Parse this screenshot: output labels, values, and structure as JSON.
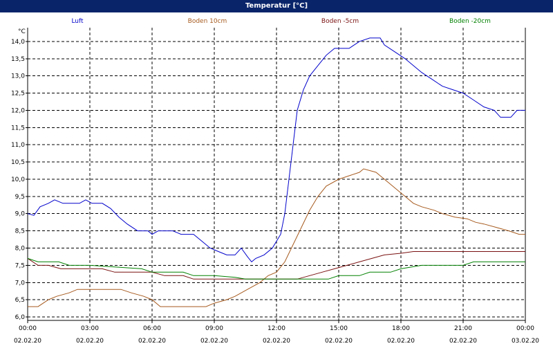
{
  "window": {
    "title": "Temperatur [°C]"
  },
  "chart_data": {
    "type": "line",
    "title": "Temperatur [°C]",
    "ylabel": "°C",
    "xlabel": "",
    "ylim": [
      5.9,
      14.4
    ],
    "yticks": [
      6.0,
      6.5,
      7.0,
      7.5,
      8.0,
      8.5,
      9.0,
      9.5,
      10.0,
      10.5,
      11.0,
      11.5,
      12.0,
      12.5,
      13.0,
      13.5,
      14.0
    ],
    "ytick_labels": [
      "6,0",
      "6,5",
      "7,0",
      "7,5",
      "8,0",
      "8,5",
      "9,0",
      "9,5",
      "10,0",
      "10,5",
      "11,0",
      "11,5",
      "12,0",
      "12,5",
      "13,0",
      "13,5",
      "14,0"
    ],
    "xlim": [
      0,
      24
    ],
    "xticks": [
      0,
      3,
      6,
      9,
      12,
      15,
      18,
      21,
      24
    ],
    "xtick_time_labels": [
      "00:00",
      "03:00",
      "06:00",
      "09:00",
      "12:00",
      "15:00",
      "18:00",
      "21:00",
      "00:00"
    ],
    "xtick_date_labels": [
      "02.02.20",
      "02.02.20",
      "02.02.20",
      "02.02.20",
      "02.02.20",
      "02.02.20",
      "02.02.20",
      "02.02.20",
      "03.02.20"
    ],
    "grid": true,
    "legend": "top",
    "series": [
      {
        "name": "Luft",
        "color": "#0000cc",
        "points": [
          [
            0,
            9.0
          ],
          [
            0.3,
            8.95
          ],
          [
            0.6,
            9.2
          ],
          [
            1.0,
            9.3
          ],
          [
            1.3,
            9.4
          ],
          [
            1.7,
            9.3
          ],
          [
            2.5,
            9.3
          ],
          [
            2.8,
            9.4
          ],
          [
            3.1,
            9.3
          ],
          [
            3.6,
            9.3
          ],
          [
            4.0,
            9.15
          ],
          [
            4.4,
            8.9
          ],
          [
            4.8,
            8.7
          ],
          [
            5.3,
            8.5
          ],
          [
            5.8,
            8.5
          ],
          [
            6.0,
            8.4
          ],
          [
            6.3,
            8.5
          ],
          [
            7.0,
            8.5
          ],
          [
            7.4,
            8.4
          ],
          [
            8.0,
            8.4
          ],
          [
            8.4,
            8.2
          ],
          [
            8.8,
            8.0
          ],
          [
            9.2,
            7.9
          ],
          [
            9.6,
            7.8
          ],
          [
            10.0,
            7.8
          ],
          [
            10.3,
            8.0
          ],
          [
            10.6,
            7.75
          ],
          [
            10.8,
            7.6
          ],
          [
            11.0,
            7.7
          ],
          [
            11.4,
            7.8
          ],
          [
            11.8,
            8.0
          ],
          [
            12.2,
            8.4
          ],
          [
            12.4,
            9.0
          ],
          [
            12.6,
            10.0
          ],
          [
            12.8,
            11.0
          ],
          [
            13.0,
            12.0
          ],
          [
            13.3,
            12.6
          ],
          [
            13.6,
            13.0
          ],
          [
            14.0,
            13.3
          ],
          [
            14.4,
            13.6
          ],
          [
            14.8,
            13.8
          ],
          [
            15.5,
            13.8
          ],
          [
            16.0,
            14.0
          ],
          [
            16.5,
            14.1
          ],
          [
            17.0,
            14.1
          ],
          [
            17.2,
            13.9
          ],
          [
            17.7,
            13.7
          ],
          [
            18.2,
            13.5
          ],
          [
            18.6,
            13.3
          ],
          [
            19.0,
            13.1
          ],
          [
            19.5,
            12.9
          ],
          [
            20.0,
            12.7
          ],
          [
            20.5,
            12.6
          ],
          [
            21.0,
            12.5
          ],
          [
            21.5,
            12.3
          ],
          [
            22.0,
            12.1
          ],
          [
            22.5,
            12.0
          ],
          [
            22.8,
            11.8
          ],
          [
            23.3,
            11.8
          ],
          [
            23.6,
            12.0
          ],
          [
            24.0,
            12.0
          ]
        ]
      },
      {
        "name": "Boden 10cm",
        "color": "#a65a1e",
        "points": [
          [
            0,
            6.3
          ],
          [
            0.5,
            6.3
          ],
          [
            1.0,
            6.5
          ],
          [
            1.4,
            6.6
          ],
          [
            2.0,
            6.7
          ],
          [
            2.4,
            6.8
          ],
          [
            3.0,
            6.8
          ],
          [
            4.5,
            6.8
          ],
          [
            5.0,
            6.7
          ],
          [
            5.6,
            6.6
          ],
          [
            6.0,
            6.5
          ],
          [
            6.4,
            6.3
          ],
          [
            7.0,
            6.3
          ],
          [
            8.0,
            6.3
          ],
          [
            8.6,
            6.3
          ],
          [
            9.0,
            6.4
          ],
          [
            9.6,
            6.5
          ],
          [
            10.0,
            6.6
          ],
          [
            10.6,
            6.8
          ],
          [
            11.2,
            7.0
          ],
          [
            11.6,
            7.2
          ],
          [
            12.0,
            7.3
          ],
          [
            12.4,
            7.6
          ],
          [
            12.8,
            8.1
          ],
          [
            13.2,
            8.6
          ],
          [
            13.6,
            9.1
          ],
          [
            14.0,
            9.5
          ],
          [
            14.4,
            9.8
          ],
          [
            15.0,
            10.0
          ],
          [
            15.5,
            10.1
          ],
          [
            16.0,
            10.2
          ],
          [
            16.2,
            10.3
          ],
          [
            16.8,
            10.2
          ],
          [
            17.4,
            9.9
          ],
          [
            17.8,
            9.7
          ],
          [
            18.2,
            9.5
          ],
          [
            18.6,
            9.3
          ],
          [
            19.0,
            9.2
          ],
          [
            19.6,
            9.1
          ],
          [
            20.0,
            9.0
          ],
          [
            20.6,
            8.9
          ],
          [
            21.2,
            8.85
          ],
          [
            21.6,
            8.75
          ],
          [
            22.0,
            8.7
          ],
          [
            22.6,
            8.6
          ],
          [
            23.2,
            8.5
          ],
          [
            23.7,
            8.4
          ],
          [
            24.0,
            8.4
          ]
        ]
      },
      {
        "name": "Boden -5cm",
        "color": "#7a1010",
        "points": [
          [
            0,
            7.7
          ],
          [
            0.5,
            7.5
          ],
          [
            1.0,
            7.5
          ],
          [
            1.6,
            7.4
          ],
          [
            2.2,
            7.4
          ],
          [
            3.0,
            7.4
          ],
          [
            3.6,
            7.4
          ],
          [
            4.2,
            7.3
          ],
          [
            5.0,
            7.3
          ],
          [
            6.0,
            7.3
          ],
          [
            6.6,
            7.2
          ],
          [
            7.5,
            7.2
          ],
          [
            8.0,
            7.1
          ],
          [
            8.8,
            7.1
          ],
          [
            9.6,
            7.1
          ],
          [
            10.2,
            7.1
          ],
          [
            11.0,
            7.1
          ],
          [
            12.0,
            7.1
          ],
          [
            13.0,
            7.1
          ],
          [
            13.6,
            7.2
          ],
          [
            14.2,
            7.3
          ],
          [
            14.8,
            7.4
          ],
          [
            15.4,
            7.5
          ],
          [
            16.0,
            7.6
          ],
          [
            16.6,
            7.7
          ],
          [
            17.2,
            7.8
          ],
          [
            18.0,
            7.85
          ],
          [
            18.6,
            7.9
          ],
          [
            20.0,
            7.9
          ],
          [
            24.0,
            7.9
          ]
        ]
      },
      {
        "name": "Boden -20cm",
        "color": "#008000",
        "points": [
          [
            0,
            7.7
          ],
          [
            0.5,
            7.6
          ],
          [
            1.5,
            7.6
          ],
          [
            2.0,
            7.5
          ],
          [
            3.0,
            7.5
          ],
          [
            5.5,
            7.4
          ],
          [
            6.0,
            7.3
          ],
          [
            7.5,
            7.3
          ],
          [
            8.0,
            7.2
          ],
          [
            9.0,
            7.2
          ],
          [
            10.0,
            7.15
          ],
          [
            10.5,
            7.1
          ],
          [
            13.0,
            7.1
          ],
          [
            14.5,
            7.1
          ],
          [
            15.0,
            7.2
          ],
          [
            16.0,
            7.2
          ],
          [
            16.5,
            7.3
          ],
          [
            17.5,
            7.3
          ],
          [
            18.0,
            7.4
          ],
          [
            19.0,
            7.5
          ],
          [
            20.0,
            7.5
          ],
          [
            21.0,
            7.5
          ],
          [
            21.5,
            7.6
          ],
          [
            24.0,
            7.6
          ]
        ]
      }
    ]
  }
}
